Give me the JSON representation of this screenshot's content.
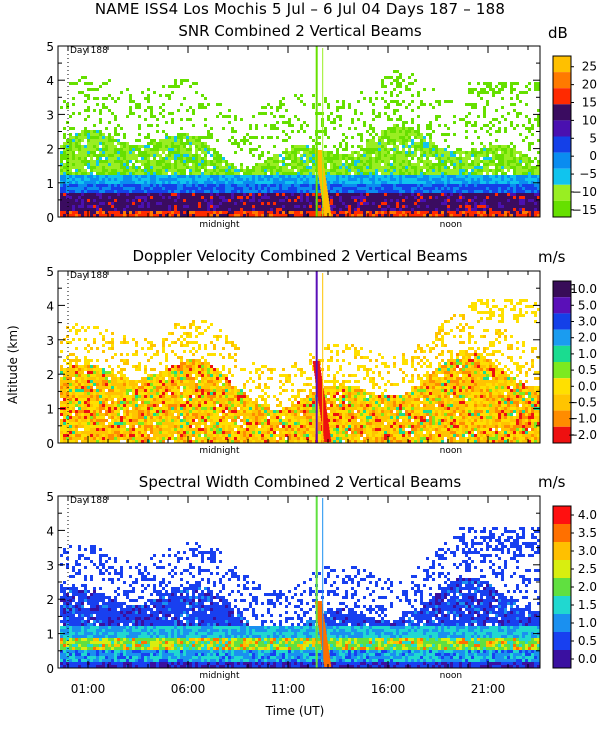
{
  "header": {
    "title": "NAME ISS4 Los Mochis    5 Jul –   6 Jul 04 Days 187 – 188"
  },
  "colors": {
    "snr": [
      "#66e000",
      "#99ee22",
      "#10c4ee",
      "#0a8cf0",
      "#1440e8",
      "#4a10b0",
      "#3a0c60",
      "#ff2a00",
      "#ff7a00",
      "#ffc000"
    ],
    "vel": [
      "#ee1010",
      "#ff8c00",
      "#ffc400",
      "#ffe000",
      "#7cea20",
      "#1adc90",
      "#1a9cf0",
      "#1440e8",
      "#5a10b8",
      "#380c58"
    ],
    "sw": [
      "#3a10a0",
      "#1840f0",
      "#1a90f0",
      "#20d8d0",
      "#60e040",
      "#d8ee10",
      "#ffc000",
      "#ff7000",
      "#ff1010"
    ]
  },
  "chart_data": [
    {
      "type": "heatmap",
      "title": "SNR Combined 2 Vertical Beams",
      "unit": "dB",
      "ylabel": "",
      "xlabel": "",
      "ylim": [
        0,
        5
      ],
      "yticks": [
        "0",
        "1",
        "2",
        "3",
        "4",
        "5"
      ],
      "xtick_labels": [
        "midnight",
        "noon"
      ],
      "day_label": "Day 188",
      "colorbar_labels": [
        "25",
        "20",
        "15",
        "10",
        "5",
        "0",
        "−5",
        "−10",
        "−15"
      ],
      "colorbar_range": [
        -17.5,
        27.5
      ]
    },
    {
      "type": "heatmap",
      "title": "Doppler Velocity Combined 2 Vertical Beams",
      "unit": "m/s",
      "ylabel": "Altitude (km)",
      "xlabel": "",
      "ylim": [
        0,
        5
      ],
      "yticks": [
        "0",
        "1",
        "2",
        "3",
        "4",
        "5"
      ],
      "xtick_labels": [
        "midnight",
        "noon"
      ],
      "day_label": "Day 188",
      "colorbar_labels": [
        "10.0",
        "5.0",
        "3.0",
        "2.0",
        "1.0",
        "0.5",
        "0.0",
        "−0.5",
        "−1.0",
        "−2.0"
      ],
      "colorbar_range": [
        -2.0,
        10.0
      ]
    },
    {
      "type": "heatmap",
      "title": "Spectral Width Combined 2 Vertical Beams",
      "unit": "m/s",
      "ylabel": "",
      "xlabel": "Time (UT)",
      "ylim": [
        0,
        5
      ],
      "yticks": [
        "0",
        "1",
        "2",
        "3",
        "4",
        "5"
      ],
      "xtick_labels": [
        "midnight",
        "noon"
      ],
      "xtime_labels": [
        "01:00",
        "06:00",
        "11:00",
        "16:00",
        "21:00"
      ],
      "day_label": "Day 188",
      "colorbar_labels": [
        "4.0",
        "3.5",
        "3.0",
        "2.5",
        "2.0",
        "1.5",
        "1.0",
        "0.5",
        "0.0"
      ],
      "colorbar_range": [
        0.0,
        4.0
      ]
    }
  ]
}
